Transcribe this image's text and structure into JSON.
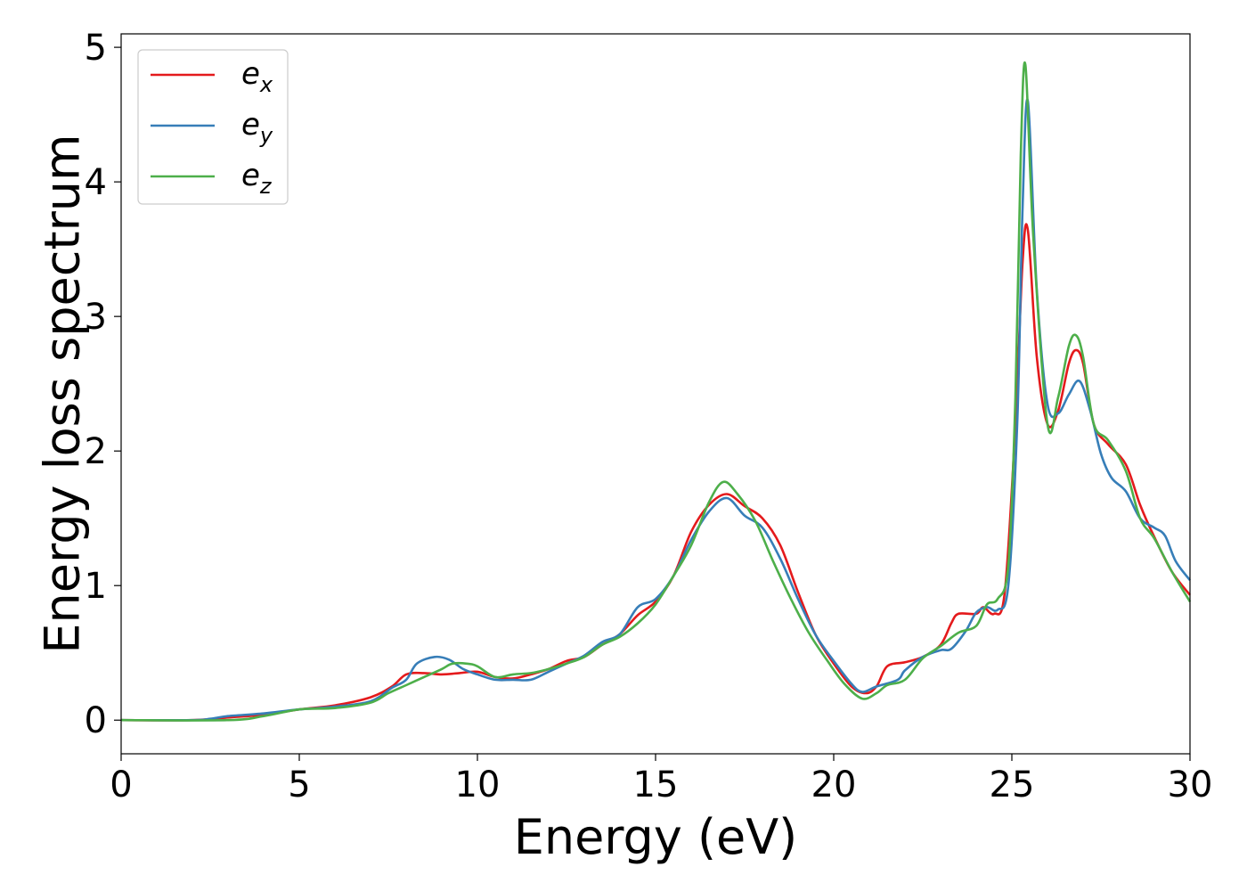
{
  "chart_data": {
    "type": "line",
    "title": "",
    "xlabel": "Energy (eV)",
    "ylabel": "Energy loss spectrum",
    "xlim": [
      0,
      30
    ],
    "ylim": [
      -0.25,
      5.1
    ],
    "xticks": [
      0,
      5,
      10,
      15,
      20,
      25,
      30
    ],
    "yticks": [
      0,
      1,
      2,
      3,
      4,
      5
    ],
    "grid": false,
    "legend_position": "top-left",
    "series": [
      {
        "name": "e",
        "subscript": "x",
        "color": "#e41a1c",
        "points": [
          [
            0,
            0
          ],
          [
            2,
            0
          ],
          [
            3,
            0.02
          ],
          [
            4,
            0.04
          ],
          [
            5,
            0.08
          ],
          [
            6,
            0.11
          ],
          [
            7,
            0.17
          ],
          [
            7.6,
            0.25
          ],
          [
            8,
            0.34
          ],
          [
            8.5,
            0.35
          ],
          [
            9,
            0.34
          ],
          [
            9.5,
            0.35
          ],
          [
            10,
            0.36
          ],
          [
            10.5,
            0.32
          ],
          [
            11,
            0.31
          ],
          [
            11.5,
            0.34
          ],
          [
            12,
            0.38
          ],
          [
            12.5,
            0.44
          ],
          [
            13,
            0.47
          ],
          [
            13.5,
            0.56
          ],
          [
            14,
            0.64
          ],
          [
            14.5,
            0.78
          ],
          [
            15,
            0.88
          ],
          [
            15.5,
            1.07
          ],
          [
            16,
            1.4
          ],
          [
            16.5,
            1.6
          ],
          [
            17,
            1.68
          ],
          [
            17.5,
            1.59
          ],
          [
            18,
            1.5
          ],
          [
            18.5,
            1.3
          ],
          [
            19,
            0.95
          ],
          [
            19.5,
            0.63
          ],
          [
            20,
            0.42
          ],
          [
            20.5,
            0.25
          ],
          [
            20.9,
            0.2
          ],
          [
            21.2,
            0.25
          ],
          [
            21.5,
            0.4
          ],
          [
            22,
            0.43
          ],
          [
            22.5,
            0.47
          ],
          [
            23,
            0.56
          ],
          [
            23.3,
            0.72
          ],
          [
            23.5,
            0.79
          ],
          [
            24,
            0.79
          ],
          [
            24.2,
            0.84
          ],
          [
            24.5,
            0.79
          ],
          [
            24.8,
            0.95
          ],
          [
            25.1,
            2.2
          ],
          [
            25.3,
            3.4
          ],
          [
            25.45,
            3.64
          ],
          [
            25.7,
            2.7
          ],
          [
            26,
            2.2
          ],
          [
            26.3,
            2.3
          ],
          [
            26.6,
            2.65
          ],
          [
            26.8,
            2.75
          ],
          [
            27,
            2.65
          ],
          [
            27.3,
            2.2
          ],
          [
            27.7,
            2.05
          ],
          [
            28.2,
            1.9
          ],
          [
            28.6,
            1.6
          ],
          [
            29,
            1.36
          ],
          [
            29.5,
            1.1
          ],
          [
            30,
            0.93
          ]
        ]
      },
      {
        "name": "e",
        "subscript": "y",
        "color": "#377eb8",
        "points": [
          [
            0,
            0
          ],
          [
            2,
            0
          ],
          [
            2.5,
            0.01
          ],
          [
            3,
            0.03
          ],
          [
            4,
            0.05
          ],
          [
            5,
            0.08
          ],
          [
            6,
            0.1
          ],
          [
            7,
            0.14
          ],
          [
            7.6,
            0.24
          ],
          [
            8,
            0.3
          ],
          [
            8.3,
            0.42
          ],
          [
            8.8,
            0.47
          ],
          [
            9.2,
            0.45
          ],
          [
            9.6,
            0.38
          ],
          [
            10,
            0.34
          ],
          [
            10.5,
            0.3
          ],
          [
            11,
            0.3
          ],
          [
            11.5,
            0.3
          ],
          [
            12,
            0.36
          ],
          [
            12.5,
            0.42
          ],
          [
            13,
            0.48
          ],
          [
            13.5,
            0.58
          ],
          [
            14,
            0.64
          ],
          [
            14.5,
            0.84
          ],
          [
            15,
            0.9
          ],
          [
            15.5,
            1.07
          ],
          [
            16,
            1.34
          ],
          [
            16.5,
            1.55
          ],
          [
            17,
            1.65
          ],
          [
            17.5,
            1.52
          ],
          [
            18,
            1.43
          ],
          [
            18.5,
            1.2
          ],
          [
            19,
            0.9
          ],
          [
            19.5,
            0.63
          ],
          [
            20,
            0.44
          ],
          [
            20.5,
            0.27
          ],
          [
            20.8,
            0.21
          ],
          [
            21.2,
            0.25
          ],
          [
            21.8,
            0.3
          ],
          [
            22,
            0.37
          ],
          [
            22.5,
            0.47
          ],
          [
            23,
            0.52
          ],
          [
            23.3,
            0.53
          ],
          [
            23.7,
            0.66
          ],
          [
            24,
            0.8
          ],
          [
            24.3,
            0.84
          ],
          [
            24.6,
            0.82
          ],
          [
            24.9,
            1.0
          ],
          [
            25.15,
            2.2
          ],
          [
            25.3,
            3.8
          ],
          [
            25.45,
            4.6
          ],
          [
            25.7,
            3.2
          ],
          [
            26,
            2.35
          ],
          [
            26.3,
            2.28
          ],
          [
            26.6,
            2.42
          ],
          [
            26.9,
            2.52
          ],
          [
            27.2,
            2.3
          ],
          [
            27.5,
            1.98
          ],
          [
            27.8,
            1.8
          ],
          [
            28.2,
            1.7
          ],
          [
            28.6,
            1.5
          ],
          [
            29,
            1.43
          ],
          [
            29.3,
            1.37
          ],
          [
            29.6,
            1.18
          ],
          [
            30,
            1.04
          ]
        ]
      },
      {
        "name": "e",
        "subscript": "z",
        "color": "#4daf4a",
        "points": [
          [
            0,
            0
          ],
          [
            3,
            0
          ],
          [
            4,
            0.03
          ],
          [
            5,
            0.08
          ],
          [
            6,
            0.09
          ],
          [
            7,
            0.13
          ],
          [
            7.5,
            0.2
          ],
          [
            8,
            0.26
          ],
          [
            8.5,
            0.32
          ],
          [
            9,
            0.38
          ],
          [
            9.3,
            0.42
          ],
          [
            9.7,
            0.42
          ],
          [
            10,
            0.4
          ],
          [
            10.5,
            0.32
          ],
          [
            11,
            0.34
          ],
          [
            11.5,
            0.35
          ],
          [
            12,
            0.38
          ],
          [
            12.5,
            0.42
          ],
          [
            13,
            0.47
          ],
          [
            13.5,
            0.56
          ],
          [
            14,
            0.62
          ],
          [
            14.5,
            0.72
          ],
          [
            15,
            0.86
          ],
          [
            15.5,
            1.07
          ],
          [
            16,
            1.3
          ],
          [
            16.5,
            1.62
          ],
          [
            16.9,
            1.77
          ],
          [
            17.3,
            1.68
          ],
          [
            17.8,
            1.48
          ],
          [
            18.3,
            1.18
          ],
          [
            18.8,
            0.9
          ],
          [
            19.3,
            0.65
          ],
          [
            19.8,
            0.45
          ],
          [
            20.3,
            0.27
          ],
          [
            20.8,
            0.16
          ],
          [
            21.2,
            0.2
          ],
          [
            21.5,
            0.26
          ],
          [
            22,
            0.3
          ],
          [
            22.5,
            0.46
          ],
          [
            23,
            0.55
          ],
          [
            23.5,
            0.65
          ],
          [
            24,
            0.7
          ],
          [
            24.3,
            0.86
          ],
          [
            24.6,
            0.9
          ],
          [
            24.9,
            1.15
          ],
          [
            25.1,
            2.4
          ],
          [
            25.25,
            4.2
          ],
          [
            25.38,
            4.87
          ],
          [
            25.6,
            3.6
          ],
          [
            26,
            2.2
          ],
          [
            26.3,
            2.4
          ],
          [
            26.6,
            2.78
          ],
          [
            26.8,
            2.86
          ],
          [
            27,
            2.7
          ],
          [
            27.3,
            2.2
          ],
          [
            27.7,
            2.08
          ],
          [
            28.2,
            1.85
          ],
          [
            28.6,
            1.5
          ],
          [
            29,
            1.35
          ],
          [
            29.5,
            1.1
          ],
          [
            30,
            0.88
          ]
        ]
      }
    ]
  }
}
